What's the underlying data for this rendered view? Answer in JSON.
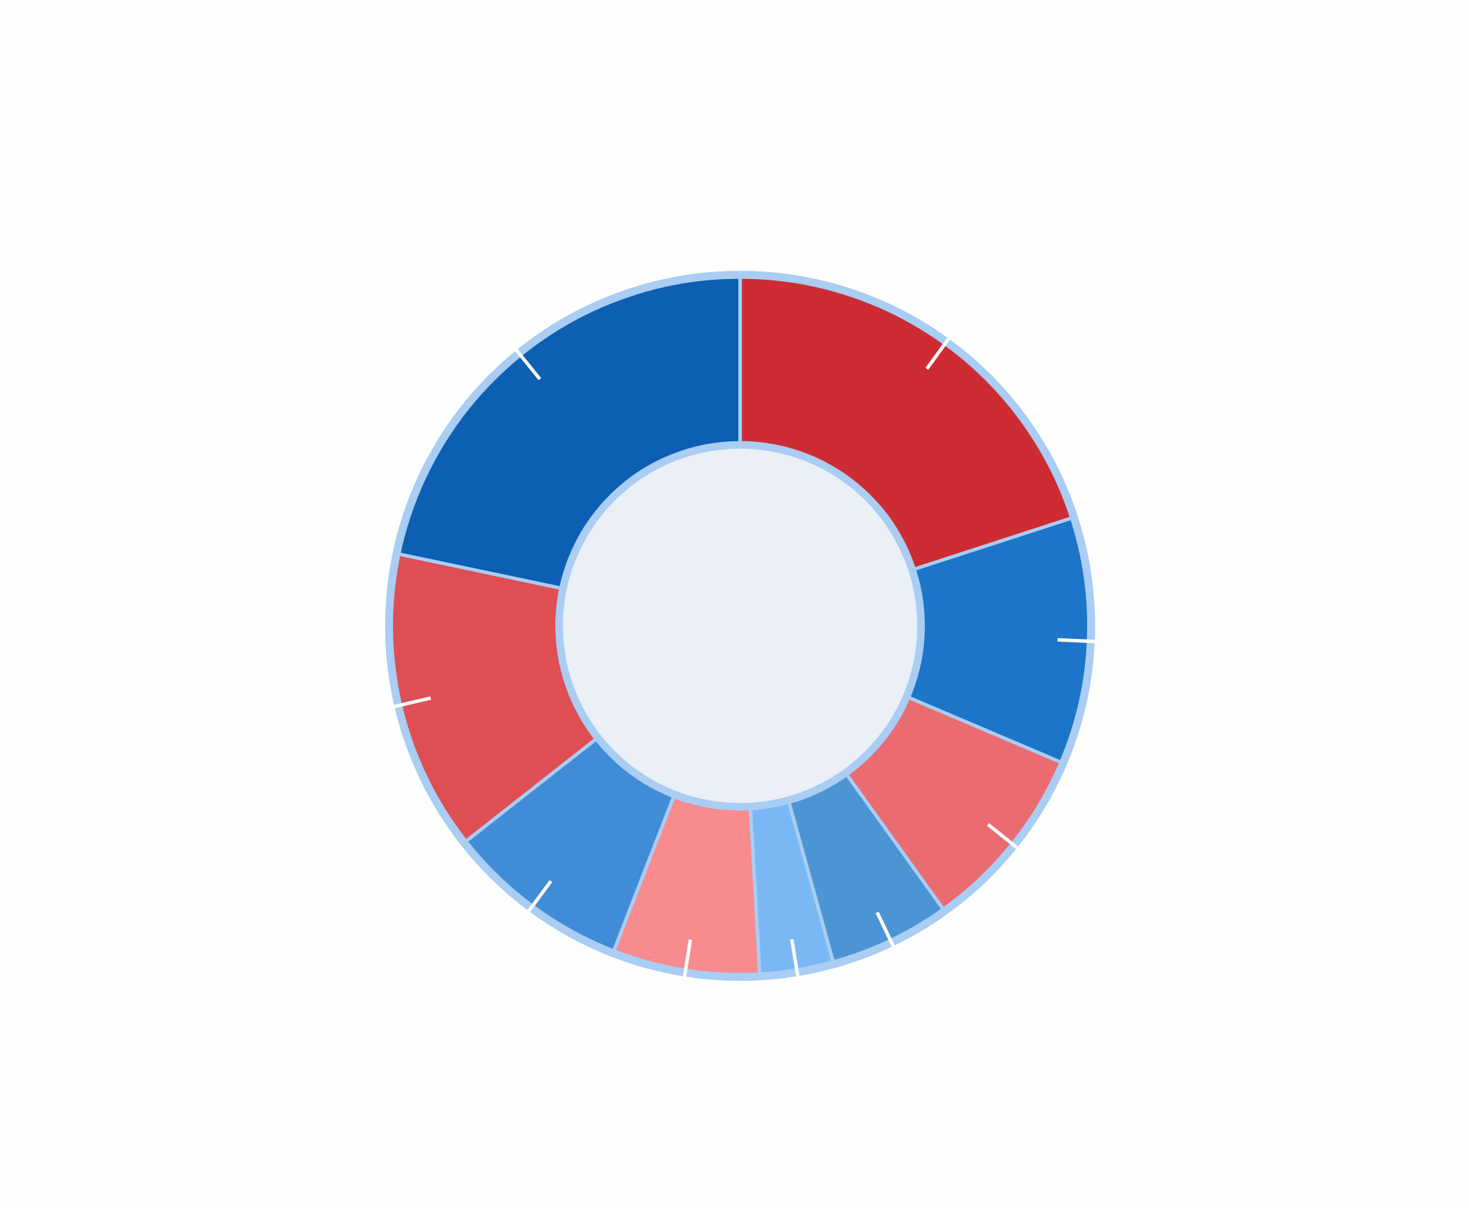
{
  "chart_data": {
    "type": "pie",
    "donut": true,
    "values": [
      20,
      11.4,
      8.7,
      5.6,
      3.4,
      6.8,
      8.5,
      13.9,
      21.7
    ],
    "colors": [
      "#cd2c32",
      "#1c75c8",
      "#ea6b70",
      "#4b95d5",
      "#7ab8f5",
      "#f78b8e",
      "#418cd6",
      "#de4e53",
      "#0c5fb2"
    ]
  }
}
